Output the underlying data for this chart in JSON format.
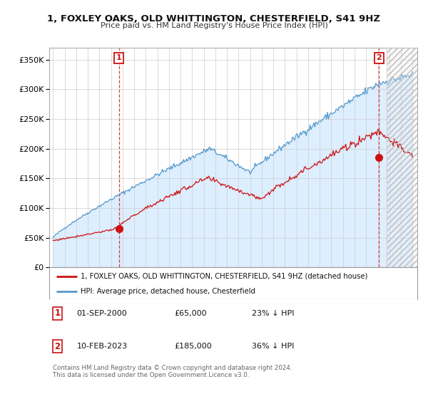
{
  "title": "1, FOXLEY OAKS, OLD WHITTINGTON, CHESTERFIELD, S41 9HZ",
  "subtitle": "Price paid vs. HM Land Registry's House Price Index (HPI)",
  "ylim": [
    0,
    370000
  ],
  "yticks": [
    0,
    50000,
    100000,
    150000,
    200000,
    250000,
    300000,
    350000
  ],
  "sale1": {
    "date": "2000-09-01",
    "price": 65000,
    "label": "1"
  },
  "sale2": {
    "date": "2023-02-10",
    "price": 185000,
    "label": "2"
  },
  "hpi_color": "#5599cc",
  "hpi_fill_color": "#ddeeff",
  "price_color": "#cc1111",
  "legend_entries": [
    "1, FOXLEY OAKS, OLD WHITTINGTON, CHESTERFIELD, S41 9HZ (detached house)",
    "HPI: Average price, detached house, Chesterfield"
  ],
  "table_rows": [
    {
      "num": "1",
      "date": "01-SEP-2000",
      "price": "£65,000",
      "hpi": "23% ↓ HPI"
    },
    {
      "num": "2",
      "date": "10-FEB-2023",
      "price": "£185,000",
      "hpi": "36% ↓ HPI"
    }
  ],
  "footnote": "Contains HM Land Registry data © Crown copyright and database right 2024.\nThis data is licensed under the Open Government Licence v3.0.",
  "bg_color": "#ffffff",
  "grid_color": "#cccccc"
}
